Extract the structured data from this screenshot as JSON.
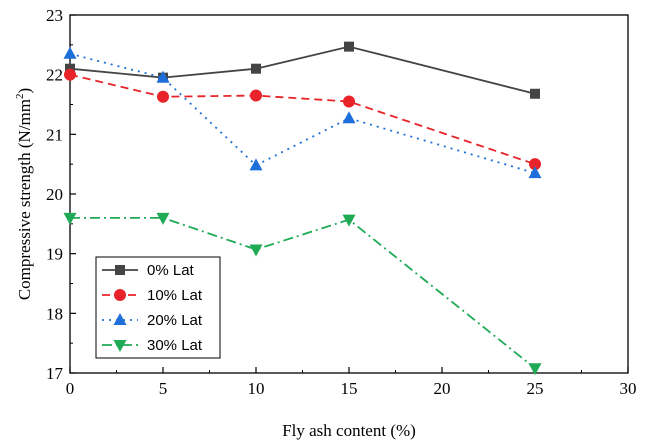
{
  "chart_data": {
    "type": "line",
    "xlabel": "Fly ash content (%)",
    "ylabel": "Compressive strength (N/mm",
    "ylabel_sup": "2",
    "ylabel_close": ")",
    "xlim": [
      0,
      30
    ],
    "ylim": [
      17,
      23
    ],
    "xticks": [
      0,
      5,
      10,
      15,
      20,
      25,
      30
    ],
    "yticks": [
      17,
      18,
      19,
      20,
      21,
      22,
      23
    ],
    "grid": false,
    "legend_position": "bottom-left",
    "x": [
      0,
      5,
      10,
      15,
      25
    ],
    "series": [
      {
        "name": "0% Lat",
        "values": [
          22.1,
          21.95,
          22.1,
          22.47,
          21.68
        ],
        "color": "#444444",
        "marker": "square",
        "dash": "solid"
      },
      {
        "name": "10% Lat",
        "values": [
          22.0,
          21.63,
          21.65,
          21.55,
          20.5
        ],
        "color": "#e8242a",
        "marker": "circle",
        "dash": "dashed"
      },
      {
        "name": "20% Lat",
        "values": [
          22.35,
          21.95,
          20.48,
          21.27,
          20.35
        ],
        "color": "#1e6fd9",
        "marker": "triangle-up",
        "dash": "dotted"
      },
      {
        "name": "30% Lat",
        "values": [
          19.6,
          19.6,
          19.07,
          19.57,
          17.08
        ],
        "color": "#1faa55",
        "marker": "triangle-down",
        "dash": "dash-dot"
      }
    ]
  }
}
